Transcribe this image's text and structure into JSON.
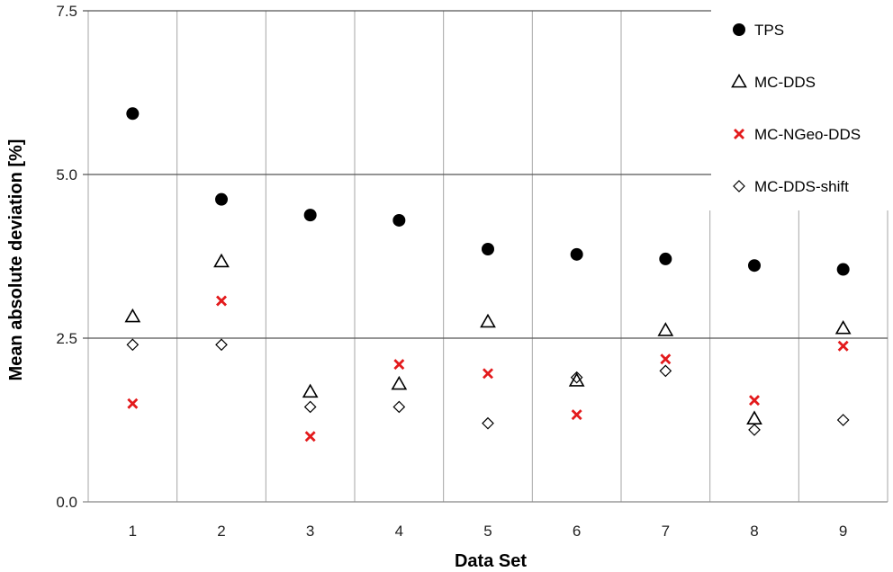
{
  "chart_data": {
    "type": "scatter",
    "xlabel": "Data Set",
    "ylabel": "Mean absolute deviation [%]",
    "categories": [
      "1",
      "2",
      "3",
      "4",
      "5",
      "6",
      "7",
      "8",
      "9"
    ],
    "ylim": [
      0,
      7.5
    ],
    "yticks": [
      "0.0",
      "2.5",
      "5.0",
      "7.5"
    ],
    "grid": true,
    "legend_position": "top-right",
    "series": [
      {
        "name": "TPS",
        "marker": "filled-circle",
        "color": "#000000",
        "values": [
          5.93,
          4.62,
          4.38,
          4.3,
          3.86,
          3.78,
          3.71,
          3.61,
          3.55
        ]
      },
      {
        "name": "MC-DDS",
        "marker": "open-triangle",
        "color": "#000000",
        "values": [
          2.83,
          3.67,
          1.68,
          1.8,
          2.75,
          1.85,
          2.62,
          1.27,
          2.65
        ]
      },
      {
        "name": "MC-NGeo-DDS",
        "marker": "red-x",
        "color": "#e31a1c",
        "values": [
          1.5,
          3.07,
          1.0,
          2.1,
          1.96,
          1.33,
          2.18,
          1.55,
          2.38
        ]
      },
      {
        "name": "MC-DDS-shift",
        "marker": "open-diamond",
        "color": "#000000",
        "values": [
          2.4,
          2.4,
          1.45,
          1.45,
          1.2,
          1.9,
          2.0,
          1.1,
          1.25
        ]
      }
    ]
  }
}
